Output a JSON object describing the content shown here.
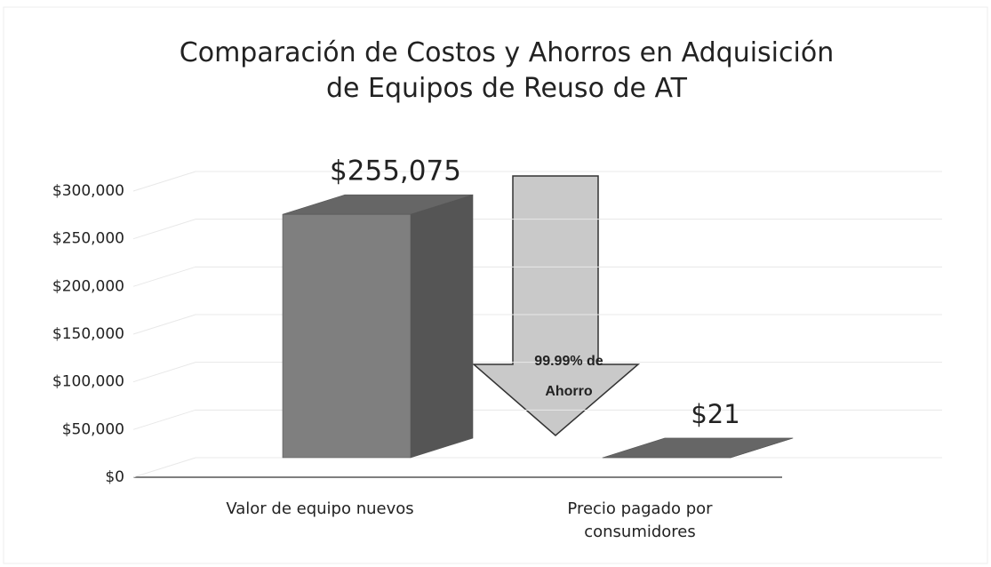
{
  "chart_data": {
    "type": "bar",
    "title": "Comparación de Costos y Ahorros en Adquisición\nde Equipos de  Reuso de AT",
    "categories": [
      "Valor de equipo nuevos",
      "Precio pagado por consumidores"
    ],
    "values": [
      255075,
      21
    ],
    "value_labels": [
      "$255,075",
      "$21"
    ],
    "annotation": "99.99% de Ahorro",
    "color": "#7f7f7f",
    "ylim": [
      0,
      300000
    ],
    "yticks": [
      {
        "value": 0,
        "label": "$0"
      },
      {
        "value": 50000,
        "label": "$50,000"
      },
      {
        "value": 100000,
        "label": "$100,000"
      },
      {
        "value": 150000,
        "label": "$150,000"
      },
      {
        "value": 200000,
        "label": "$200,000"
      },
      {
        "value": 250000,
        "label": "$250,000"
      },
      {
        "value": 300000,
        "label": "$300,000"
      }
    ],
    "grid": true
  }
}
